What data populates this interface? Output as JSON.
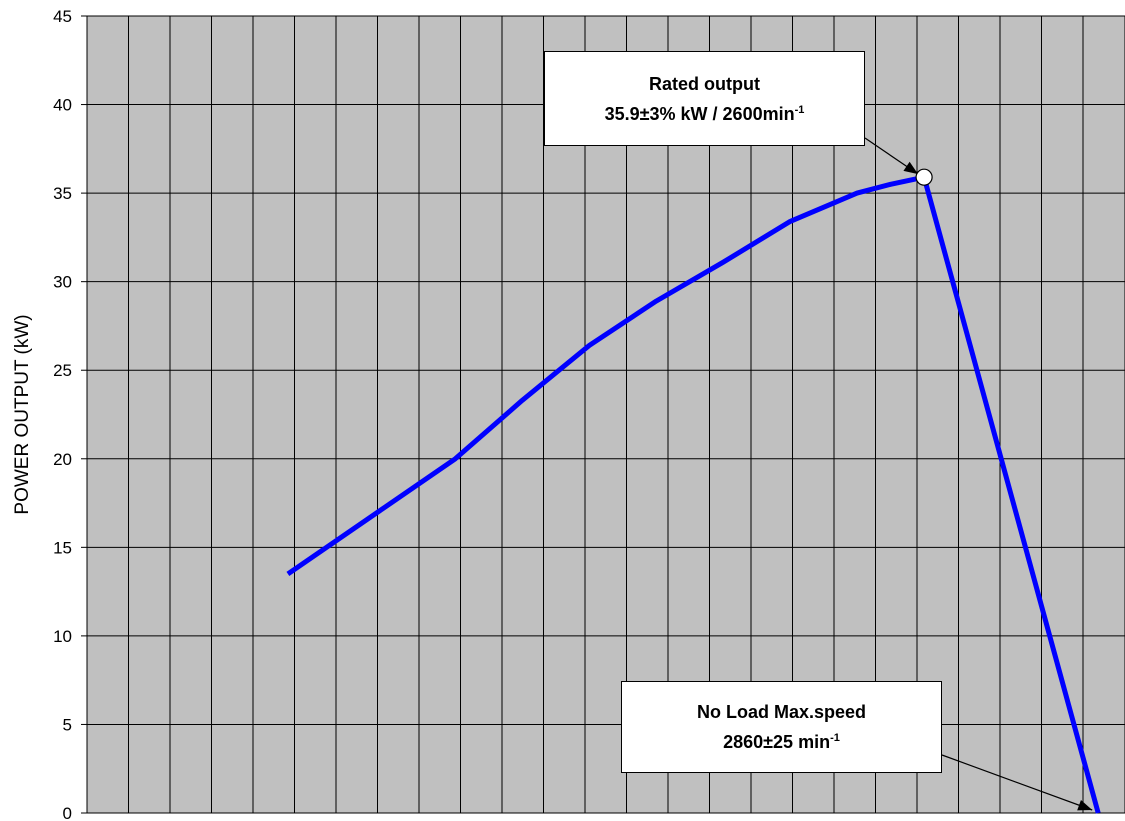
{
  "chart_data": {
    "type": "line",
    "title": "",
    "xlabel": "",
    "ylabel": "POWER OUTPUT (kW)",
    "ylim": [
      0,
      45
    ],
    "yticks": [
      "0",
      "5",
      "10",
      "15",
      "20",
      "25",
      "30",
      "35",
      "40",
      "45"
    ],
    "xlim": [
      1350,
      2900
    ],
    "xticks_visible": false,
    "grid": true,
    "colors": {
      "series": "#0000ff",
      "plot_background": "#c0c0c0",
      "grid": "#000000",
      "marker_fill": "#ffffff"
    },
    "series": [
      {
        "x": [
          1650,
          1900,
          2000,
          2100,
          2200,
          2300,
          2400,
          2500,
          2550,
          2600,
          2860
        ],
        "y": [
          13.5,
          20.0,
          23.3,
          26.4,
          28.9,
          31.1,
          33.4,
          35.0,
          35.5,
          35.9,
          0
        ]
      }
    ],
    "annotations": [
      {
        "name": "rated-output",
        "line1": "Rated output",
        "line2_main": "35.9±3% kW / 2600min",
        "line2_sup": "-1",
        "point": {
          "x": 2600,
          "y": 35.9
        },
        "marker": "open-circle"
      },
      {
        "name": "no-load-max-speed",
        "line1": "No Load Max.speed",
        "line2_main": "2860±25 min",
        "line2_sup": "-1",
        "point": {
          "x": 2860,
          "y": 0
        },
        "marker": "none"
      }
    ]
  }
}
